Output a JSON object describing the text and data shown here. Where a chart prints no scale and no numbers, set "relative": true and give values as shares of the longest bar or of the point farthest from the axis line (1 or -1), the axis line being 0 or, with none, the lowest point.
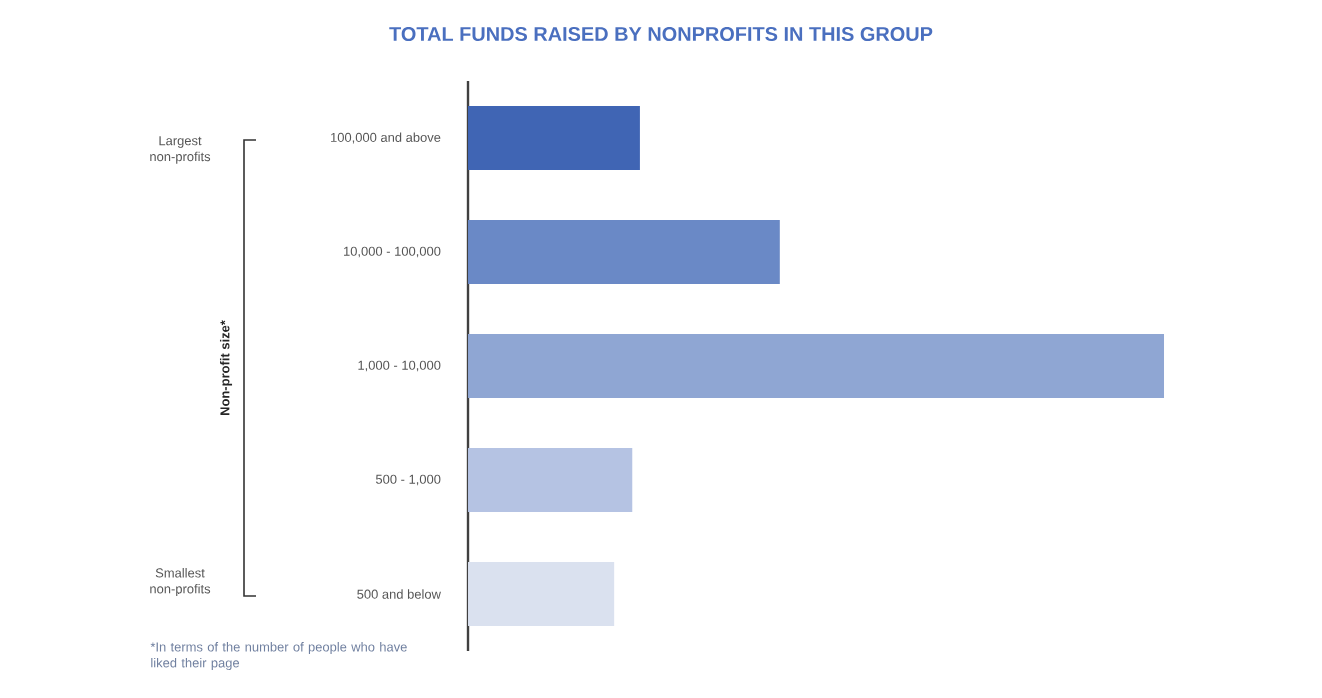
{
  "chart_data": {
    "type": "bar",
    "orientation": "horizontal",
    "relative": true,
    "title": "TOTAL FUNDS RAISED BY NONPROFITS IN THIS GROUP",
    "categories": [
      "100,000 and above",
      "10,000 - 100,000",
      "1,000 - 10,000",
      "500 - 1,000",
      "500 and below"
    ],
    "values": [
      0.247,
      0.448,
      1,
      0.236,
      0.21
    ],
    "colors": [
      "#4065b4",
      "#6a89c6",
      "#8fa6d3",
      "#b5c3e3",
      "#dae1ef"
    ],
    "annotations": [
      "Non-profit size*",
      "Largest non-profits",
      "Smallest non-profits",
      "*In terms of the number of people who have liked their page"
    ]
  }
}
